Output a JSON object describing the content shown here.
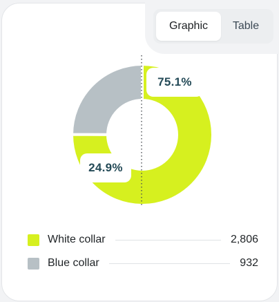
{
  "toggle": {
    "options": [
      {
        "label": "Graphic",
        "active": true
      },
      {
        "label": "Table",
        "active": false
      }
    ]
  },
  "chart_data": {
    "type": "pie",
    "variant": "donut",
    "series": [
      {
        "name": "White collar",
        "value": 2806,
        "percent": 75.1,
        "percent_label": "75.1%",
        "value_label": "2,806",
        "color": "#d6f01f"
      },
      {
        "name": "Blue collar",
        "value": 932,
        "percent": 24.9,
        "percent_label": "24.9%",
        "value_label": "932",
        "color": "#b7c0c5"
      }
    ]
  }
}
